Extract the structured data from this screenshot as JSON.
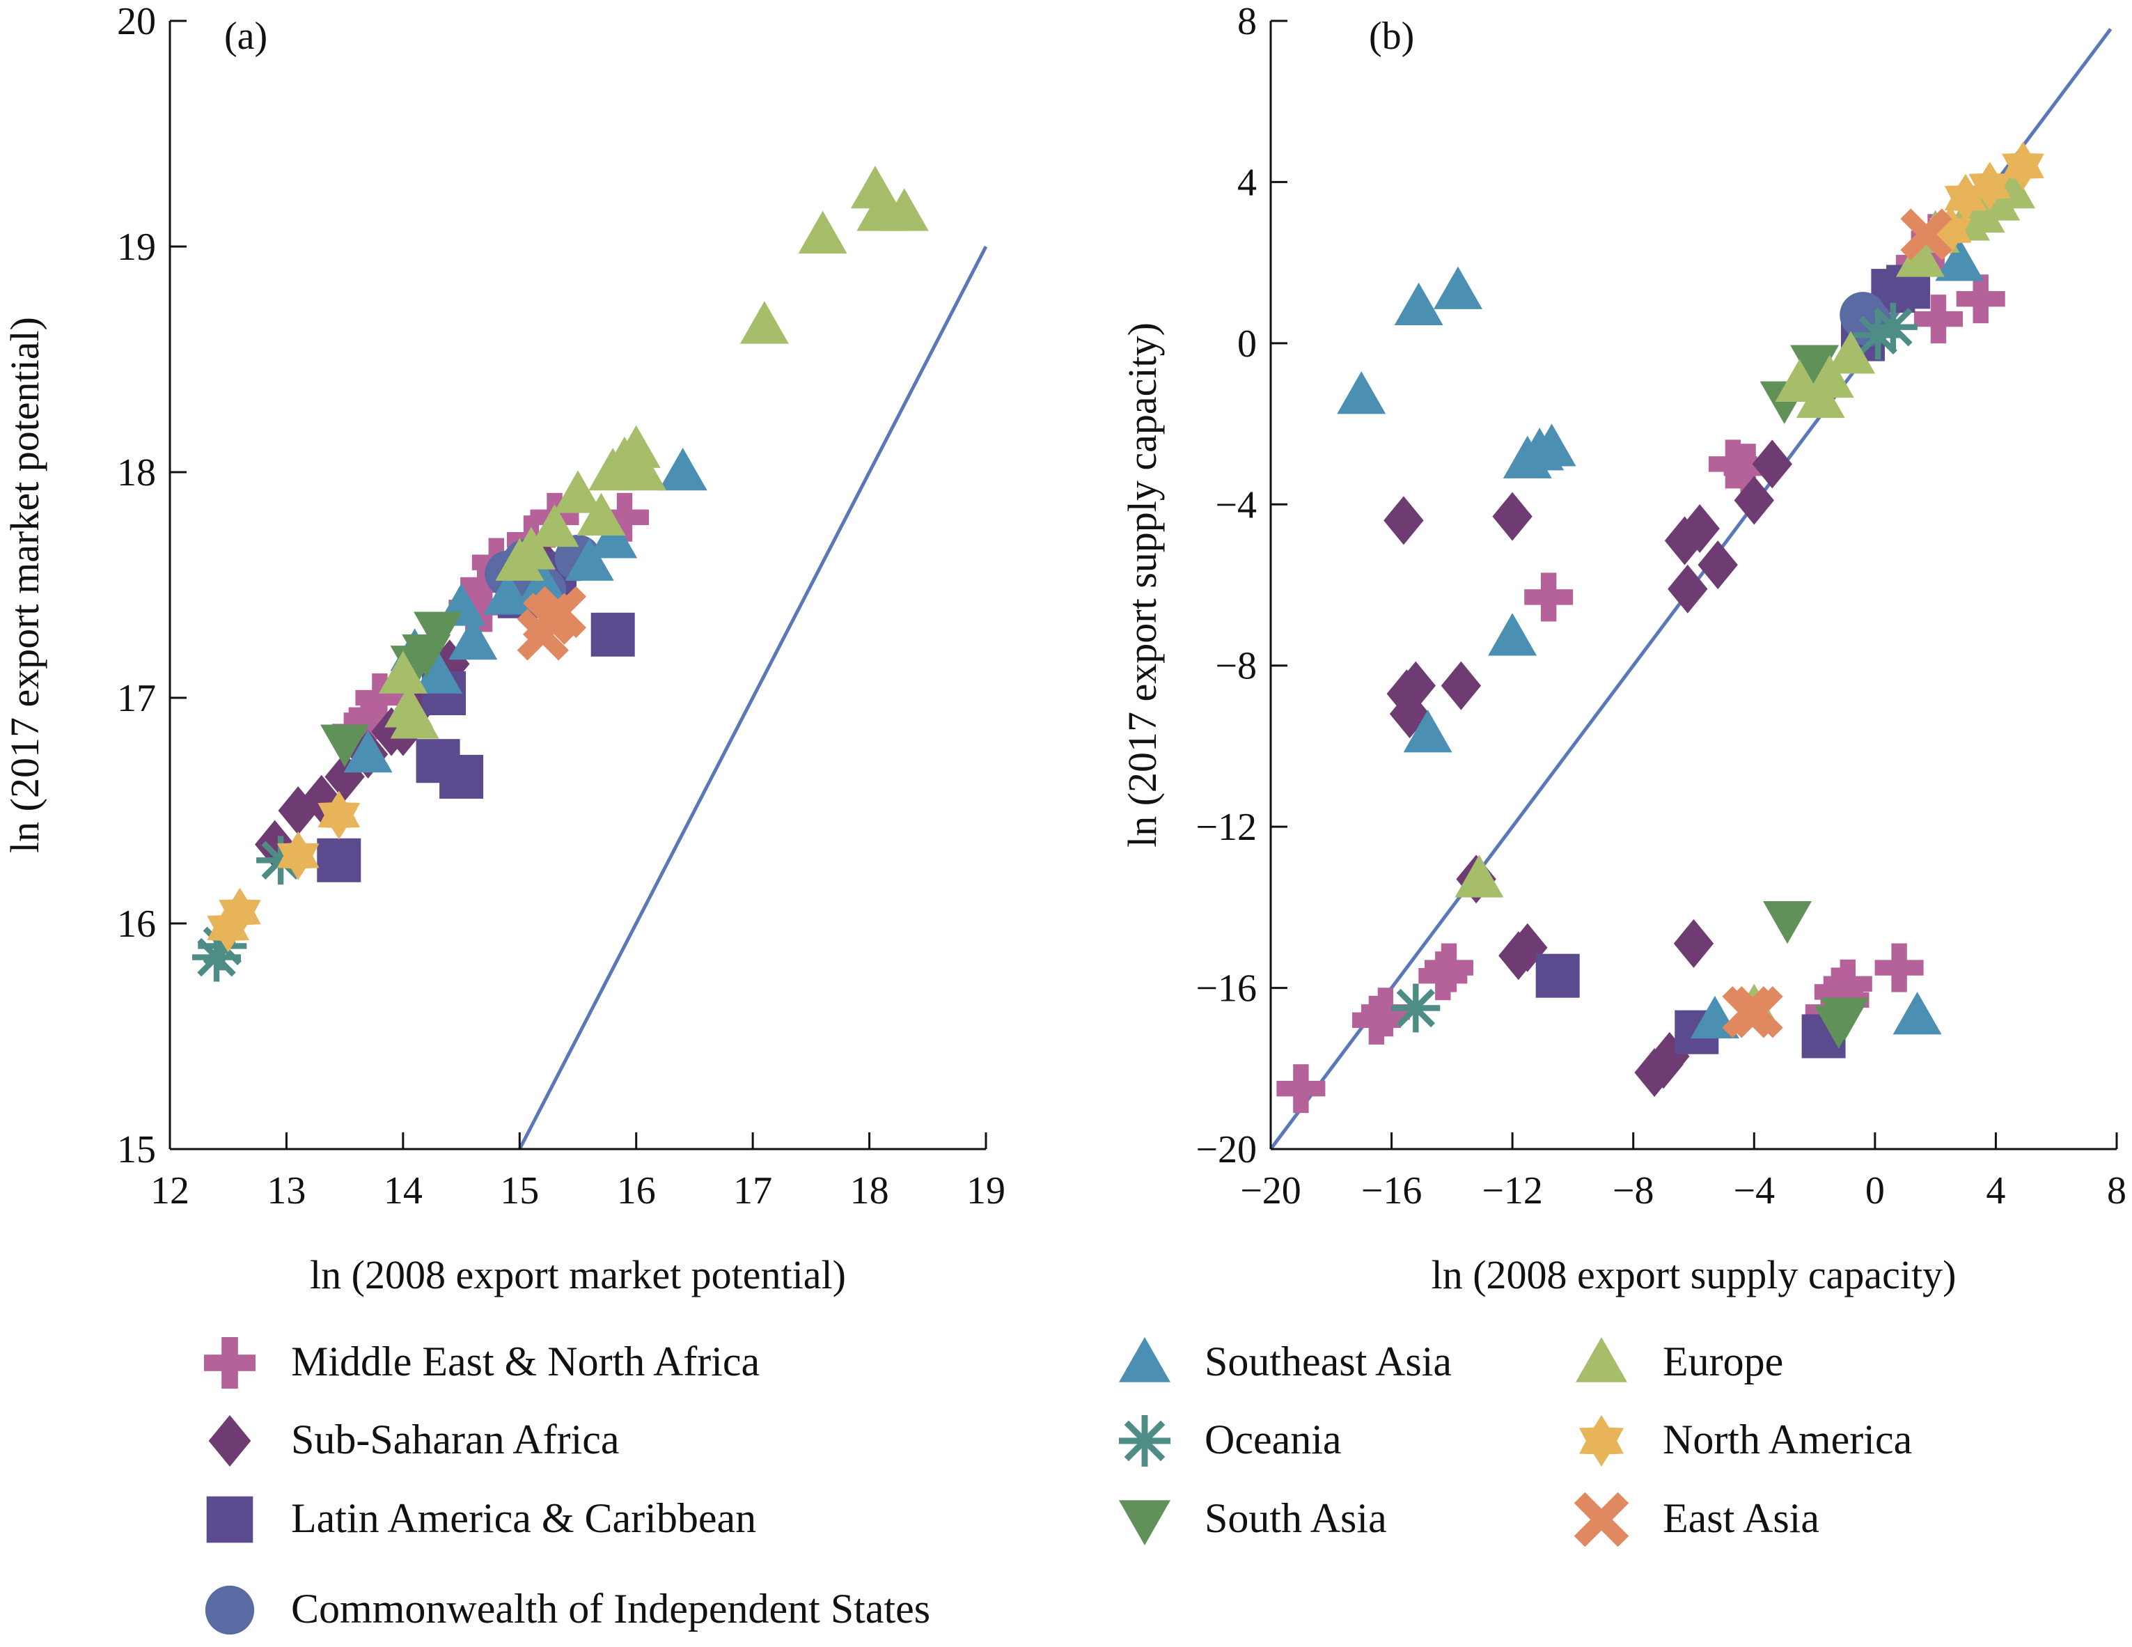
{
  "legend": [
    {
      "label": "Middle East & North Africa",
      "marker": "plus",
      "color": "#b5619a"
    },
    {
      "label": "Sub-Saharan Africa",
      "marker": "diamond",
      "color": "#6e3b73"
    },
    {
      "label": "Latin America & Caribbean",
      "marker": "square",
      "color": "#5c4a8e"
    },
    {
      "label": "Commonwealth of Independent States",
      "marker": "circle",
      "color": "#5a6aa3"
    },
    {
      "label": "Southeast Asia",
      "marker": "triangle-up",
      "color": "#4b8fb3"
    },
    {
      "label": "Oceania",
      "marker": "asterisk",
      "color": "#4e8c86"
    },
    {
      "label": "South Asia",
      "marker": "triangle-down",
      "color": "#5f9159"
    },
    {
      "label": "Europe",
      "marker": "triangle-up",
      "color": "#a6bd6a"
    },
    {
      "label": "North America",
      "marker": "star",
      "color": "#e8b45a"
    },
    {
      "label": "East Asia",
      "marker": "x",
      "color": "#e08860"
    }
  ],
  "chart_data": [
    {
      "type": "scatter",
      "panel_label": "(a)",
      "xlabel": "ln (2008 export market potential)",
      "ylabel": "ln (2017 export market potential)",
      "xlim": [
        12,
        19
      ],
      "ylim": [
        15,
        20
      ],
      "xticks": [
        12,
        13,
        14,
        15,
        16,
        17,
        18,
        19
      ],
      "yticks": [
        15,
        16,
        17,
        18,
        19,
        20
      ],
      "tick_labels_x": [
        "12",
        "13",
        "14",
        "15",
        "16",
        "17",
        "18",
        "19"
      ],
      "tick_labels_y": [
        "15",
        "16",
        "17",
        "18",
        "19",
        "20"
      ],
      "reference_line": [
        [
          15,
          15
        ],
        [
          19,
          19
        ]
      ],
      "line_color": "#5a78b8",
      "series": [
        {
          "name": "Middle East & North Africa",
          "points": [
            [
              13.7,
              16.9
            ],
            [
              13.8,
              17.0
            ],
            [
              14.6,
              17.4
            ],
            [
              14.7,
              17.5
            ],
            [
              14.8,
              17.6
            ],
            [
              15.1,
              17.7
            ],
            [
              15.3,
              17.8
            ],
            [
              15.9,
              17.8
            ],
            [
              14.7,
              17.4
            ],
            [
              13.6,
              16.85
            ]
          ]
        },
        {
          "name": "Sub-Saharan Africa",
          "points": [
            [
              12.9,
              16.35
            ],
            [
              13.1,
              16.5
            ],
            [
              13.3,
              16.55
            ],
            [
              13.5,
              16.65
            ],
            [
              13.7,
              16.75
            ],
            [
              13.9,
              16.85
            ],
            [
              14.0,
              16.85
            ],
            [
              14.1,
              16.95
            ],
            [
              14.3,
              17.05
            ],
            [
              14.4,
              17.15
            ],
            [
              15.2,
              17.6
            ],
            [
              15.0,
              17.5
            ]
          ]
        },
        {
          "name": "Latin America & Caribbean",
          "points": [
            [
              13.45,
              16.28
            ],
            [
              14.3,
              16.72
            ],
            [
              14.5,
              16.65
            ],
            [
              14.35,
              17.02
            ],
            [
              15.8,
              17.28
            ],
            [
              15.0,
              17.45
            ],
            [
              15.3,
              17.55
            ]
          ]
        },
        {
          "name": "Commonwealth of Independent States",
          "points": [
            [
              14.9,
              17.55
            ],
            [
              15.05,
              17.6
            ],
            [
              15.5,
              17.62
            ],
            [
              15.2,
              17.48
            ]
          ]
        },
        {
          "name": "Southeast Asia",
          "points": [
            [
              13.7,
              16.75
            ],
            [
              14.1,
              17.2
            ],
            [
              14.3,
              17.1
            ],
            [
              14.5,
              17.4
            ],
            [
              14.6,
              17.25
            ],
            [
              15.2,
              17.5
            ],
            [
              15.6,
              17.6
            ],
            [
              15.8,
              17.7
            ],
            [
              16.4,
              18.0
            ],
            [
              14.9,
              17.45
            ]
          ]
        },
        {
          "name": "Oceania",
          "points": [
            [
              12.4,
              15.85
            ],
            [
              12.45,
              15.9
            ],
            [
              12.95,
              16.28
            ]
          ]
        },
        {
          "name": "South Asia",
          "points": [
            [
              13.5,
              16.8
            ],
            [
              14.2,
              17.2
            ],
            [
              14.3,
              17.3
            ],
            [
              14.1,
              17.15
            ]
          ]
        },
        {
          "name": "Europe",
          "points": [
            [
              14.0,
              17.1
            ],
            [
              14.05,
              16.95
            ],
            [
              14.1,
              16.9
            ],
            [
              15.0,
              17.6
            ],
            [
              15.1,
              17.65
            ],
            [
              15.3,
              17.75
            ],
            [
              15.5,
              17.9
            ],
            [
              15.7,
              17.8
            ],
            [
              15.8,
              18.0
            ],
            [
              15.9,
              18.05
            ],
            [
              16.0,
              18.1
            ],
            [
              16.05,
              18.0
            ],
            [
              17.1,
              18.65
            ],
            [
              17.6,
              19.05
            ],
            [
              18.05,
              19.25
            ],
            [
              18.1,
              19.15
            ],
            [
              18.3,
              19.15
            ]
          ]
        },
        {
          "name": "North America",
          "points": [
            [
              12.5,
              15.98
            ],
            [
              12.6,
              16.05
            ],
            [
              13.1,
              16.3
            ],
            [
              13.45,
              16.48
            ]
          ]
        },
        {
          "name": "East Asia",
          "points": [
            [
              15.2,
              17.28
            ],
            [
              15.35,
              17.38
            ],
            [
              15.25,
              17.35
            ]
          ]
        }
      ]
    },
    {
      "type": "scatter",
      "panel_label": "(b)",
      "xlabel": "ln (2008 export supply capacity)",
      "ylabel": "ln (2017 export supply capacity)",
      "xlim": [
        -20,
        8
      ],
      "ylim": [
        -20,
        8
      ],
      "xticks": [
        -20,
        -16,
        -12,
        -8,
        -4,
        0,
        4,
        8
      ],
      "yticks": [
        -20,
        -16,
        -12,
        -8,
        -4,
        0,
        4,
        8
      ],
      "tick_labels_x": [
        "−20",
        "−16",
        "−12",
        "−8",
        "−4",
        "0",
        "4",
        "8"
      ],
      "tick_labels_y": [
        "−20",
        "−16",
        "−12",
        "−8",
        "−4",
        "0",
        "4",
        "8"
      ],
      "reference_line": [
        [
          -20,
          -20
        ],
        [
          7.8,
          7.8
        ]
      ],
      "line_color": "#5a78b8",
      "series": [
        {
          "name": "Middle East & North Africa",
          "points": [
            [
              -19,
              -18.5
            ],
            [
              -16.5,
              -16.8
            ],
            [
              -16.2,
              -16.6
            ],
            [
              -14.3,
              -15.7
            ],
            [
              -14.1,
              -15.5
            ],
            [
              -4.7,
              -3.0
            ],
            [
              -4.2,
              -3.1
            ],
            [
              -10.8,
              -6.3
            ],
            [
              -1.0,
              -16.3
            ],
            [
              -1.2,
              -16.1
            ],
            [
              -0.9,
              -15.9
            ],
            [
              0.8,
              -15.5
            ],
            [
              2.0,
              2.6
            ],
            [
              2.1,
              0.6
            ],
            [
              3.5,
              1.1
            ],
            [
              1.5,
              2.0
            ],
            [
              -1.5,
              -16.6
            ]
          ]
        },
        {
          "name": "Sub-Saharan Africa",
          "points": [
            [
              -15.6,
              -4.4
            ],
            [
              -12.0,
              -4.3
            ],
            [
              -15.5,
              -8.7
            ],
            [
              -15.2,
              -8.5
            ],
            [
              -15.4,
              -9.2
            ],
            [
              -13.7,
              -8.5
            ],
            [
              -13.2,
              -13.3
            ],
            [
              -11.8,
              -15.2
            ],
            [
              -11.5,
              -15.0
            ],
            [
              -7.3,
              -18.1
            ],
            [
              -7.0,
              -17.9
            ],
            [
              -6.8,
              -17.7
            ],
            [
              -6.0,
              -14.9
            ],
            [
              -6.2,
              -6.1
            ],
            [
              -6.3,
              -4.9
            ],
            [
              -5.8,
              -4.6
            ],
            [
              -5.2,
              -5.5
            ],
            [
              -4.0,
              -3.9
            ],
            [
              -3.4,
              -3.0
            ]
          ]
        },
        {
          "name": "Latin America & Caribbean",
          "points": [
            [
              -10.5,
              -15.7
            ],
            [
              -5.9,
              -17.1
            ],
            [
              -1.7,
              -17.2
            ],
            [
              1.1,
              1.4
            ],
            [
              0.6,
              1.3
            ],
            [
              -0.4,
              0.1
            ]
          ]
        },
        {
          "name": "Commonwealth of Independent States",
          "points": [
            [
              -0.4,
              0.7
            ],
            [
              -0.2,
              0.5
            ]
          ]
        },
        {
          "name": "Southeast Asia",
          "points": [
            [
              -15.1,
              0.9
            ],
            [
              -13.8,
              1.3
            ],
            [
              -17.0,
              -1.3
            ],
            [
              -11.5,
              -2.9
            ],
            [
              -11.1,
              -2.7
            ],
            [
              -10.7,
              -2.6
            ],
            [
              -12.0,
              -7.3
            ],
            [
              -14.8,
              -9.7
            ],
            [
              -5.3,
              -16.8
            ],
            [
              1.4,
              -16.7
            ],
            [
              2.8,
              2.0
            ]
          ]
        },
        {
          "name": "Oceania",
          "points": [
            [
              -15.2,
              -16.5
            ],
            [
              0.1,
              0.2
            ],
            [
              0.6,
              0.4
            ]
          ]
        },
        {
          "name": "South Asia",
          "points": [
            [
              -2.9,
              -14.3
            ],
            [
              -3.0,
              -1.4
            ],
            [
              -1.2,
              -16.9
            ],
            [
              -1.0,
              -16.7
            ],
            [
              -2.0,
              -0.5
            ]
          ]
        },
        {
          "name": "Europe",
          "points": [
            [
              -13.1,
              -13.3
            ],
            [
              -4.0,
              -16.5
            ],
            [
              -2.5,
              -1.0
            ],
            [
              -1.8,
              -1.4
            ],
            [
              -1.5,
              -0.9
            ],
            [
              -0.8,
              -0.3
            ],
            [
              1.5,
              2.1
            ],
            [
              2.0,
              2.7
            ],
            [
              3.0,
              3.0
            ],
            [
              3.5,
              3.2
            ],
            [
              4.0,
              3.5
            ],
            [
              4.5,
              3.8
            ]
          ]
        },
        {
          "name": "North America",
          "points": [
            [
              2.5,
              2.8
            ],
            [
              3.0,
              3.6
            ],
            [
              3.8,
              3.9
            ],
            [
              4.9,
              4.4
            ]
          ]
        },
        {
          "name": "East Asia",
          "points": [
            [
              -4.2,
              -16.6
            ],
            [
              -3.9,
              -16.6
            ],
            [
              1.7,
              2.7
            ]
          ]
        }
      ]
    }
  ]
}
